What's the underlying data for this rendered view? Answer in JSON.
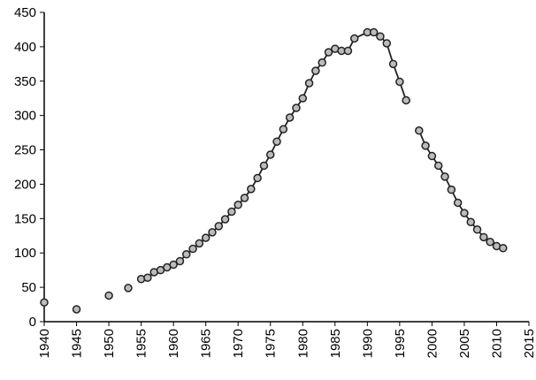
{
  "chart_data": {
    "type": "line",
    "series": [
      {
        "color": "#222222",
        "line": false,
        "x": [
          1940,
          1945,
          1950,
          1953
        ],
        "values": [
          28,
          18,
          38,
          49
        ]
      },
      {
        "color": "#222222",
        "line": true,
        "x": [
          1955,
          1956,
          1957,
          1958,
          1959,
          1960,
          1961,
          1962,
          1963,
          1964,
          1965,
          1966,
          1967,
          1968,
          1969,
          1970,
          1971,
          1972,
          1973,
          1974,
          1975,
          1976,
          1977,
          1978,
          1979,
          1980,
          1981,
          1982,
          1983,
          1984,
          1985,
          1986,
          1987,
          1988,
          1990,
          1991,
          1992,
          1993,
          1994,
          1995,
          1996,
          1997,
          1998,
          1999,
          2000,
          2001,
          2002,
          2003,
          2004,
          2005,
          2006,
          2007,
          2008,
          2009,
          2010,
          2011
        ],
        "values": [
          62,
          64,
          72,
          75,
          79,
          83,
          88,
          98,
          106,
          114,
          122,
          130,
          139,
          149,
          160,
          170,
          180,
          193,
          209,
          227,
          243,
          262,
          280,
          297,
          311,
          325,
          347,
          365,
          377,
          392,
          397,
          394,
          394,
          412,
          421,
          421,
          415,
          405,
          375,
          349,
          322,
          null,
          278,
          256,
          241,
          227,
          211,
          192,
          173,
          158,
          145,
          134,
          123,
          116,
          110,
          107
        ]
      }
    ],
    "xlim": [
      1940,
      2015
    ],
    "xticks": [
      1940,
      1945,
      1950,
      1955,
      1960,
      1965,
      1970,
      1975,
      1980,
      1985,
      1990,
      1995,
      2000,
      2005,
      2010,
      2015
    ],
    "ylim": [
      0,
      450
    ],
    "yticks": [
      0,
      50,
      100,
      150,
      200,
      250,
      300,
      350,
      400,
      450
    ],
    "marker_fill": "#bbbbbb"
  }
}
